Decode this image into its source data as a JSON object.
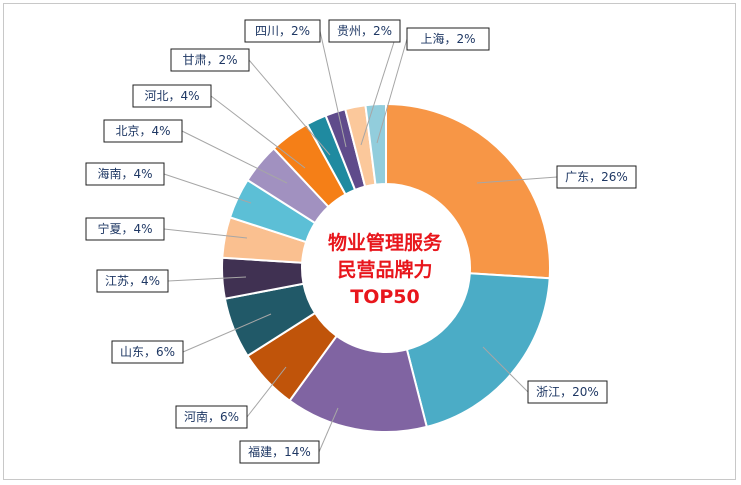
{
  "chart_data": {
    "type": "pie",
    "variant": "donut",
    "center_title": [
      "物业管理服务",
      "民营品牌力",
      "TOP50"
    ],
    "slices": [
      {
        "label": "广东，26%",
        "name": "广东",
        "value": 26,
        "color": "#f79646"
      },
      {
        "label": "浙江，20%",
        "name": "浙江",
        "value": 20,
        "color": "#4bacc6"
      },
      {
        "label": "福建，14%",
        "name": "福建",
        "value": 14,
        "color": "#8064a2"
      },
      {
        "label": "河南，6%",
        "name": "河南",
        "value": 6,
        "color": "#c0540a"
      },
      {
        "label": "山东，6%",
        "name": "山东",
        "value": 6,
        "color": "#215968"
      },
      {
        "label": "江苏，4%",
        "name": "江苏",
        "value": 4,
        "color": "#403152"
      },
      {
        "label": "宁夏，4%",
        "name": "宁夏",
        "value": 4,
        "color": "#fac090"
      },
      {
        "label": "海南，4%",
        "name": "海南",
        "value": 4,
        "color": "#5cbfd6"
      },
      {
        "label": "北京，4%",
        "name": "北京",
        "value": 4,
        "color": "#a191c0"
      },
      {
        "label": "河北，4%",
        "name": "河北",
        "value": 4,
        "color": "#f57f17"
      },
      {
        "label": "甘肃，2%",
        "name": "甘肃",
        "value": 2,
        "color": "#1f8aa0"
      },
      {
        "label": "四川，2%",
        "name": "四川",
        "value": 2,
        "color": "#5f4b8b"
      },
      {
        "label": "贵州，2%",
        "name": "贵州",
        "value": 2,
        "color": "#fbc89b"
      },
      {
        "label": "上海，2%",
        "name": "上海",
        "value": 2,
        "color": "#92cddc"
      }
    ]
  }
}
